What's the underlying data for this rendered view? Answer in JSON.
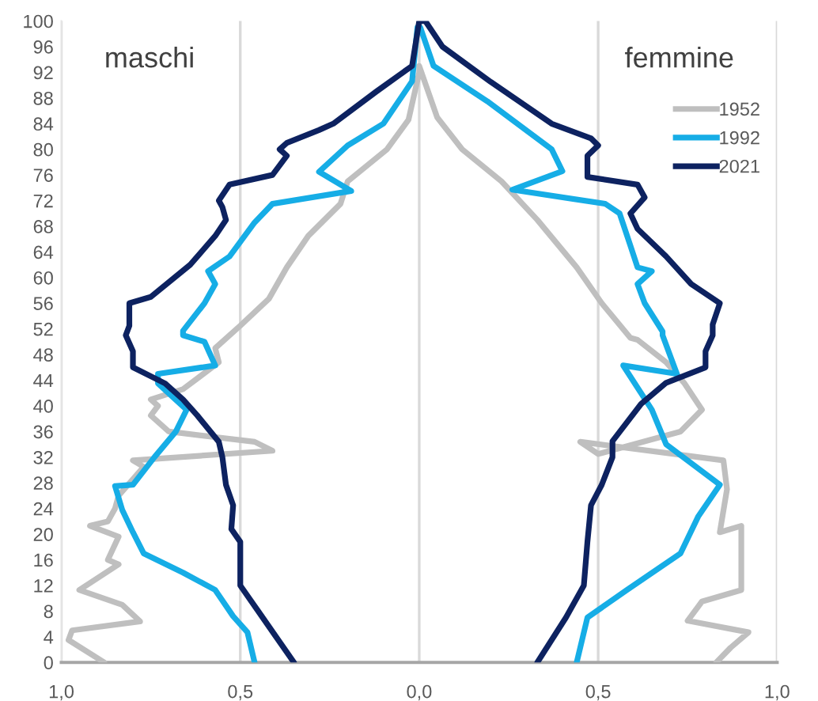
{
  "chart_data": {
    "type": "line",
    "annotations": [
      "maschi",
      "femmine"
    ],
    "xlim": [
      -1,
      1
    ],
    "xticks": [
      {
        "value": -1,
        "label": "1,0"
      },
      {
        "value": -0.5,
        "label": "0,5"
      },
      {
        "value": 0,
        "label": "0,0"
      },
      {
        "value": 0.5,
        "label": "0,5"
      },
      {
        "value": 1,
        "label": "1,0"
      }
    ],
    "ylim": [
      0,
      100
    ],
    "yticks": [
      0,
      4,
      8,
      12,
      16,
      20,
      24,
      28,
      32,
      36,
      40,
      44,
      48,
      52,
      56,
      60,
      64,
      68,
      72,
      76,
      80,
      84,
      88,
      92,
      96,
      100
    ],
    "grid": "x",
    "legend": "top right",
    "line_style": "solid",
    "marker": "none",
    "series": [
      {
        "name": "1952",
        "color": "#bfbfbf",
        "x": [
          -0.88,
          -0.98,
          -0.97,
          -0.78,
          -0.83,
          -0.95,
          -0.84,
          -0.87,
          -0.84,
          -0.92,
          -0.87,
          -0.85,
          -0.84,
          -0.77,
          -0.8,
          -0.41,
          -0.46,
          -0.7,
          -0.75,
          -0.73,
          -0.75,
          -0.66,
          -0.56,
          -0.57,
          -0.5,
          -0.42,
          -0.37,
          -0.31,
          -0.22,
          -0.2,
          -0.09,
          -0.03,
          0,
          0,
          0.05,
          0.12,
          0.23,
          0.33,
          0.44,
          0.51,
          0.59,
          0.61,
          0.69,
          0.74,
          0.79,
          0.73,
          0.5,
          0.45,
          0.85,
          0.86,
          0.84,
          0.9,
          0.9,
          0.79,
          0.75,
          0.92,
          0.87,
          0.83
        ],
        "values": [
          0,
          3.5,
          5,
          6.4,
          9,
          11.3,
          15.3,
          16,
          19.6,
          21.3,
          22,
          24,
          26,
          30.5,
          31.5,
          33,
          34.4,
          36,
          38.5,
          40,
          41,
          42.6,
          46.8,
          49,
          52.5,
          56.7,
          61.6,
          66.5,
          71.5,
          75,
          80,
          84.6,
          92,
          93,
          85,
          80,
          75,
          69,
          61.6,
          56,
          50.6,
          50.3,
          46.8,
          43.6,
          39.4,
          36,
          32.5,
          34.4,
          31.5,
          27,
          20.3,
          21.3,
          11.3,
          9.5,
          6.5,
          4.7,
          2.3,
          0
        ]
      },
      {
        "name": "1992",
        "color": "#16ade6",
        "x": [
          -0.46,
          -0.48,
          -0.52,
          -0.57,
          -0.66,
          -0.77,
          -0.8,
          -0.83,
          -0.85,
          -0.8,
          -0.74,
          -0.68,
          -0.65,
          -0.73,
          -0.73,
          -0.57,
          -0.6,
          -0.66,
          -0.66,
          -0.6,
          -0.57,
          -0.59,
          -0.53,
          -0.46,
          -0.41,
          -0.19,
          -0.28,
          -0.2,
          -0.1,
          -0.02,
          -0.005,
          0.003,
          0.04,
          0.19,
          0.37,
          0.4,
          0.26,
          0.52,
          0.56,
          0.59,
          0.61,
          0.65,
          0.61,
          0.63,
          0.68,
          0.68,
          0.72,
          0.57,
          0.65,
          0.69,
          0.84,
          0.78,
          0.73,
          0.58,
          0.47,
          0.44
        ],
        "values": [
          0,
          4.7,
          7.2,
          11.3,
          14,
          17,
          20.3,
          23.8,
          27.5,
          27.7,
          32,
          36,
          39.4,
          43.5,
          45,
          46.3,
          50,
          51,
          51.7,
          56,
          59,
          61,
          63.3,
          68.6,
          71.5,
          73.5,
          76.5,
          80.6,
          84,
          90.6,
          99,
          99,
          93,
          87.5,
          80,
          76.6,
          73.7,
          71.5,
          70,
          65,
          61.6,
          61,
          59,
          56,
          51.6,
          51,
          45,
          46.3,
          39.4,
          34,
          27.7,
          22.8,
          17,
          11.3,
          7,
          0
        ]
      },
      {
        "name": "2021",
        "color": "#0d2260",
        "x": [
          -0.35,
          -0.4,
          -0.45,
          -0.5,
          -0.5,
          -0.525,
          -0.52,
          -0.54,
          -0.55,
          -0.56,
          -0.62,
          -0.66,
          -0.71,
          -0.8,
          -0.8,
          -0.82,
          -0.81,
          -0.81,
          -0.75,
          -0.64,
          -0.57,
          -0.54,
          -0.55,
          -0.56,
          -0.53,
          -0.41,
          -0.37,
          -0.39,
          -0.37,
          -0.28,
          -0.24,
          -0.12,
          -0.02,
          0,
          0.017,
          0.065,
          0.2,
          0.37,
          0.48,
          0.5,
          0.47,
          0.47,
          0.61,
          0.63,
          0.59,
          0.61,
          0.69,
          0.76,
          0.84,
          0.82,
          0.82,
          0.8,
          0.8,
          0.69,
          0.62,
          0.54,
          0.54,
          0.51,
          0.48,
          0.47,
          0.46,
          0.41,
          0.33
        ],
        "values": [
          0,
          4,
          8,
          12,
          18.8,
          20.8,
          24.5,
          27.7,
          32,
          34.4,
          38.5,
          41,
          43.5,
          46,
          48.5,
          51,
          52.5,
          56,
          57,
          62,
          66.5,
          69,
          71,
          72,
          74.5,
          76,
          79,
          80,
          81,
          83,
          84,
          89,
          93,
          100,
          100,
          96,
          90.5,
          84,
          81.7,
          80.6,
          79,
          75.7,
          74.5,
          72.5,
          70,
          67.6,
          63.3,
          59,
          56,
          52.7,
          51,
          48.5,
          46,
          43.6,
          40.3,
          34.5,
          32,
          27.7,
          24.5,
          18.8,
          12,
          7,
          0
        ]
      }
    ]
  }
}
